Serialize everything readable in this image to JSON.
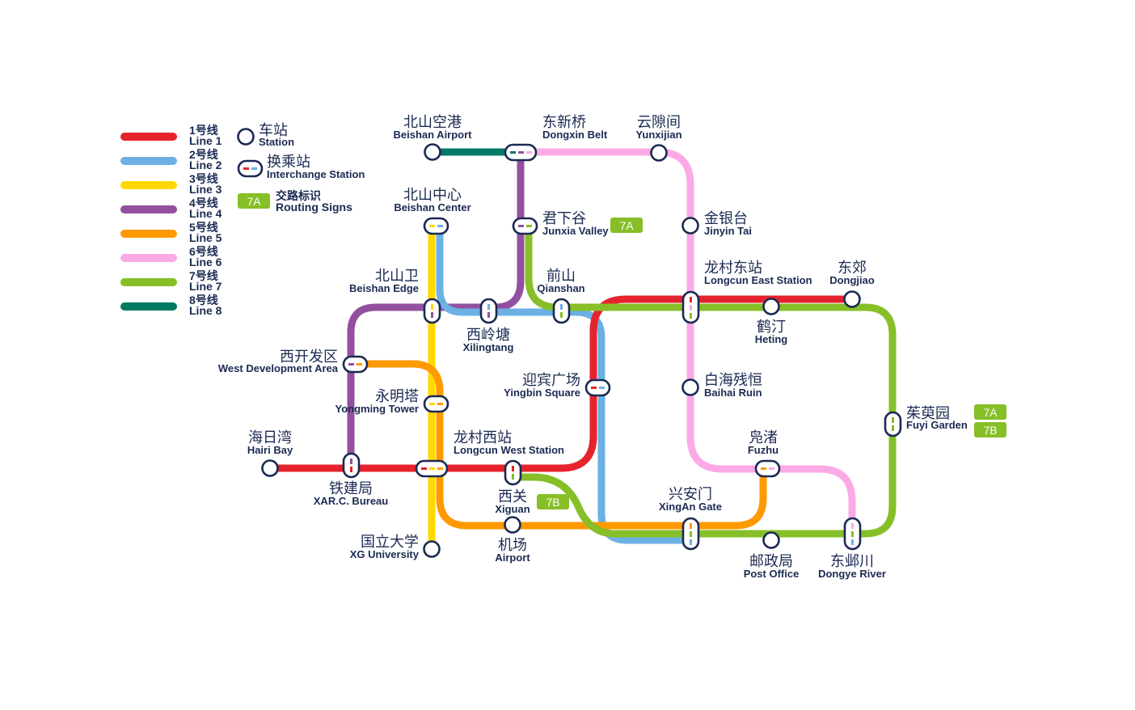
{
  "colors": {
    "line1": "#e5232d",
    "line2": "#6cb0e4",
    "line3": "#ffd800",
    "line4": "#93509f",
    "line5": "#ff9900",
    "line6": "#fbaae6",
    "line7": "#86bf27",
    "line8": "#007a63",
    "station_outline": "#1b2a52",
    "tag_bg": "#86bf27"
  },
  "legend": {
    "lines": [
      {
        "zh": "1号线",
        "en": "Line 1"
      },
      {
        "zh": "2号线",
        "en": "Line 2"
      },
      {
        "zh": "3号线",
        "en": "Line 3"
      },
      {
        "zh": "4号线",
        "en": "Line 4"
      },
      {
        "zh": "5号线",
        "en": "Line 5"
      },
      {
        "zh": "6号线",
        "en": "Line 6"
      },
      {
        "zh": "7号线",
        "en": "Line 7"
      },
      {
        "zh": "8号线",
        "en": "Line 8"
      }
    ],
    "station": {
      "zh": "车站",
      "en": "Station"
    },
    "interchange": {
      "zh": "换乘站",
      "en": "Interchange Station"
    },
    "routing": {
      "tag": "7A",
      "zh": "交路标识",
      "en": "Routing Signs"
    }
  },
  "stations": {
    "beishan_airport": {
      "zh": "北山空港",
      "en": "Beishan Airport"
    },
    "dongxin_belt": {
      "zh": "东新桥",
      "en": "Dongxin Belt"
    },
    "yunxijian": {
      "zh": "云隙间",
      "en": "Yunxijian"
    },
    "beishan_center": {
      "zh": "北山中心",
      "en": "Beishan Center"
    },
    "junxia_valley": {
      "zh": "君下谷",
      "en": "Junxia Valley"
    },
    "jinyin_tai": {
      "zh": "金银台",
      "en": "Jinyin Tai"
    },
    "beishan_edge": {
      "zh": "北山卫",
      "en": "Beishan Edge"
    },
    "qianshan": {
      "zh": "前山",
      "en": "Qianshan"
    },
    "longcun_east": {
      "zh": "龙村东站",
      "en": "Longcun East Station"
    },
    "dongjiao": {
      "zh": "东郊",
      "en": "Dongjiao"
    },
    "xilingtang": {
      "zh": "西岭塘",
      "en": "Xilingtang"
    },
    "heting": {
      "zh": "鹤汀",
      "en": "Heting"
    },
    "west_dev": {
      "zh": "西开发区",
      "en": "West Development Area"
    },
    "yingbin": {
      "zh": "迎宾广场",
      "en": "Yingbin Square"
    },
    "baihai": {
      "zh": "白海残恒",
      "en": "Baihai Ruin"
    },
    "yongming": {
      "zh": "永明塔",
      "en": "Yongming Tower"
    },
    "fuyi": {
      "zh": "茱萸园",
      "en": "Fuyi Garden"
    },
    "hairi_bay": {
      "zh": "海日湾",
      "en": "Hairi Bay"
    },
    "longcun_west": {
      "zh": "龙村西站",
      "en": "Longcun West Station"
    },
    "fuzhu": {
      "zh": "凫渚",
      "en": "Fuzhu"
    },
    "xar_bureau": {
      "zh": "铁建局",
      "en": "XAR.C. Bureau"
    },
    "xiguan": {
      "zh": "西关",
      "en": "Xiguan"
    },
    "xingan_gate": {
      "zh": "兴安门",
      "en": "XingAn Gate"
    },
    "xg_university": {
      "zh": "国立大学",
      "en": "XG University"
    },
    "airport": {
      "zh": "机场",
      "en": "Airport"
    },
    "post_office": {
      "zh": "邮政局",
      "en": "Post Office"
    },
    "dongye_river": {
      "zh": "东邺川",
      "en": "Dongye River"
    }
  },
  "tags": {
    "junxia": "7A",
    "fuyi_a": "7A",
    "fuyi_b": "7B",
    "xiguan": "7B"
  }
}
